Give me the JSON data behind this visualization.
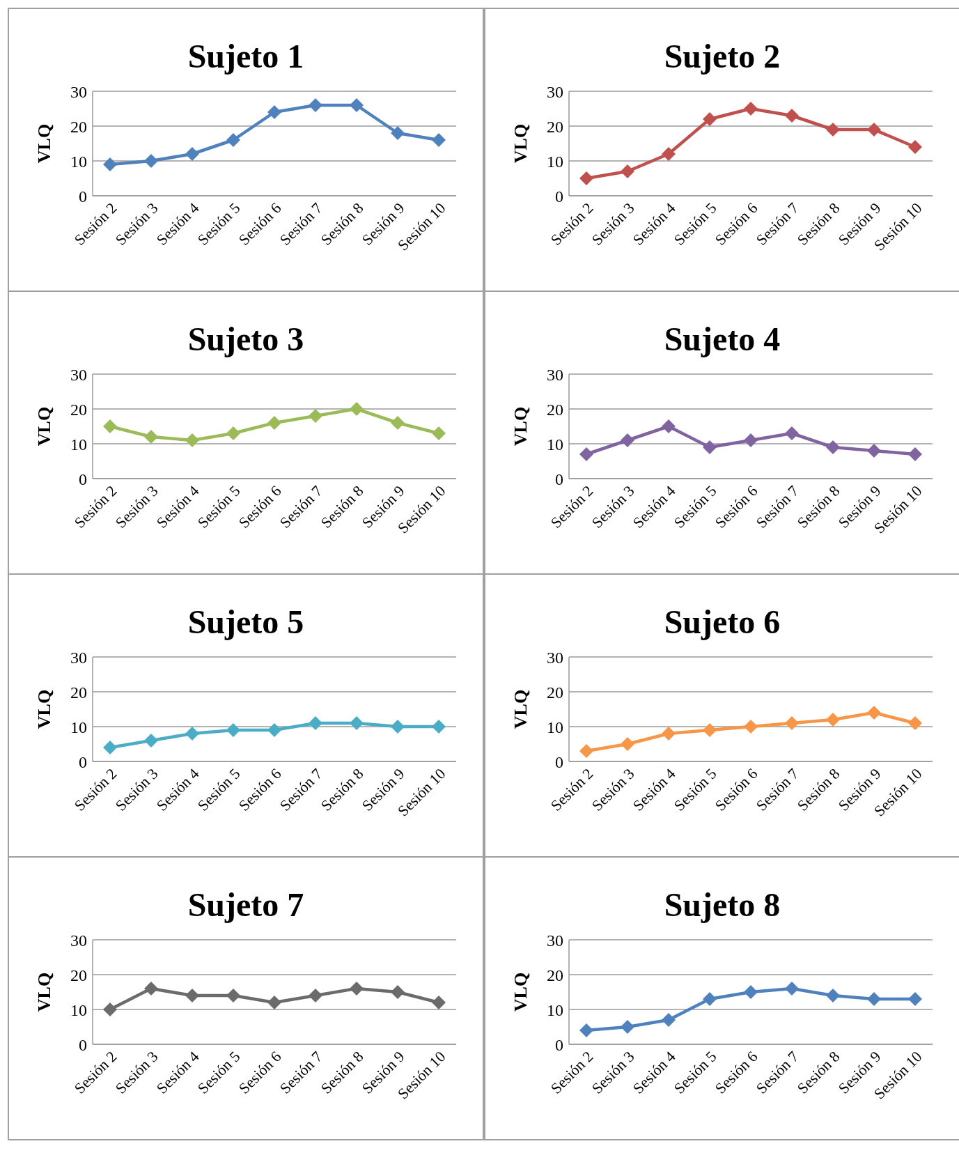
{
  "chart_data": [
    {
      "type": "line",
      "title": "Sujeto 1",
      "ylabel": "VLQ",
      "categories": [
        "Sesión 2",
        "Sesión 3",
        "Sesión 4",
        "Sesión 5",
        "Sesión 6",
        "Sesión 7",
        "Sesión 8",
        "Sesión 9",
        "Sesión 10"
      ],
      "series": [
        {
          "color": "#4f81bd",
          "values": [
            9,
            10,
            12,
            16,
            24,
            26,
            26,
            18,
            16
          ]
        }
      ],
      "ylim": [
        0,
        30
      ],
      "yticks": [
        0,
        10,
        20,
        30
      ],
      "grid": "y",
      "marker": "diamond",
      "line_style": "solid"
    },
    {
      "type": "line",
      "title": "Sujeto 2",
      "ylabel": "VLQ",
      "categories": [
        "Sesión 2",
        "Sesión 3",
        "Sesión 4",
        "Sesión 5",
        "Sesión 6",
        "Sesión 7",
        "Sesión 8",
        "Sesión 9",
        "Sesión 10"
      ],
      "series": [
        {
          "color": "#c0504d",
          "values": [
            5,
            7,
            12,
            22,
            25,
            23,
            19,
            19,
            14
          ]
        }
      ],
      "ylim": [
        0,
        30
      ],
      "yticks": [
        0,
        10,
        20,
        30
      ],
      "grid": "y",
      "marker": "diamond",
      "line_style": "solid"
    },
    {
      "type": "line",
      "title": "Sujeto 3",
      "ylabel": "VLQ",
      "categories": [
        "Sesión 2",
        "Sesión 3",
        "Sesión 4",
        "Sesión 5",
        "Sesión 6",
        "Sesión 7",
        "Sesión 8",
        "Sesión 9",
        "Sesión 10"
      ],
      "series": [
        {
          "color": "#9bbb59",
          "values": [
            15,
            12,
            11,
            13,
            16,
            18,
            20,
            16,
            13
          ]
        }
      ],
      "ylim": [
        0,
        30
      ],
      "yticks": [
        0,
        10,
        20,
        30
      ],
      "grid": "y",
      "marker": "diamond",
      "line_style": "solid"
    },
    {
      "type": "line",
      "title": "Sujeto 4",
      "ylabel": "VLQ",
      "categories": [
        "Sesión 2",
        "Sesión 3",
        "Sesión 4",
        "Sesión 5",
        "Sesión 6",
        "Sesión 7",
        "Sesión 8",
        "Sesión 9",
        "Sesión 10"
      ],
      "series": [
        {
          "color": "#8064a2",
          "values": [
            7,
            11,
            15,
            9,
            11,
            13,
            9,
            8,
            7
          ]
        }
      ],
      "ylim": [
        0,
        30
      ],
      "yticks": [
        0,
        10,
        20,
        30
      ],
      "grid": "y",
      "marker": "diamond",
      "line_style": "solid"
    },
    {
      "type": "line",
      "title": "Sujeto 5",
      "ylabel": "VLQ",
      "categories": [
        "Sesión 2",
        "Sesión 3",
        "Sesión 4",
        "Sesión 5",
        "Sesión 6",
        "Sesión 7",
        "Sesión 8",
        "Sesión 9",
        "Sesión 10"
      ],
      "series": [
        {
          "color": "#4bacc6",
          "values": [
            4,
            6,
            8,
            9,
            9,
            11,
            11,
            10,
            10
          ]
        }
      ],
      "ylim": [
        0,
        30
      ],
      "yticks": [
        0,
        10,
        20,
        30
      ],
      "grid": "y",
      "marker": "diamond",
      "line_style": "solid"
    },
    {
      "type": "line",
      "title": "Sujeto 6",
      "ylabel": "VLQ",
      "categories": [
        "Sesión 2",
        "Sesión 3",
        "Sesión 4",
        "Sesión 5",
        "Sesión 6",
        "Sesión 7",
        "Sesión 8",
        "Sesión 9",
        "Sesión 10"
      ],
      "series": [
        {
          "color": "#f79646",
          "values": [
            3,
            5,
            8,
            9,
            10,
            11,
            12,
            14,
            11
          ]
        }
      ],
      "ylim": [
        0,
        30
      ],
      "yticks": [
        0,
        10,
        20,
        30
      ],
      "grid": "y",
      "marker": "diamond",
      "line_style": "solid"
    },
    {
      "type": "line",
      "title": "Sujeto 7",
      "ylabel": "VLQ",
      "categories": [
        "Sesión 2",
        "Sesión 3",
        "Sesión 4",
        "Sesión 5",
        "Sesión 6",
        "Sesión 7",
        "Sesión 8",
        "Sesión 9",
        "Sesión 10"
      ],
      "series": [
        {
          "color": "#6b6b6b",
          "values": [
            10,
            16,
            14,
            14,
            12,
            14,
            16,
            15,
            12
          ]
        }
      ],
      "ylim": [
        0,
        30
      ],
      "yticks": [
        0,
        10,
        20,
        30
      ],
      "grid": "y",
      "marker": "diamond",
      "line_style": "solid"
    },
    {
      "type": "line",
      "title": "Sujeto 8",
      "ylabel": "VLQ",
      "categories": [
        "Sesión 2",
        "Sesión 3",
        "Sesión 4",
        "Sesión 5",
        "Sesión 6",
        "Sesión 7",
        "Sesión 8",
        "Sesión 9",
        "Sesión 10"
      ],
      "series": [
        {
          "color": "#4f81bd",
          "values": [
            4,
            5,
            7,
            13,
            15,
            16,
            14,
            13,
            13
          ]
        }
      ],
      "ylim": [
        0,
        30
      ],
      "yticks": [
        0,
        10,
        20,
        30
      ],
      "grid": "y",
      "marker": "diamond",
      "line_style": "solid"
    }
  ]
}
